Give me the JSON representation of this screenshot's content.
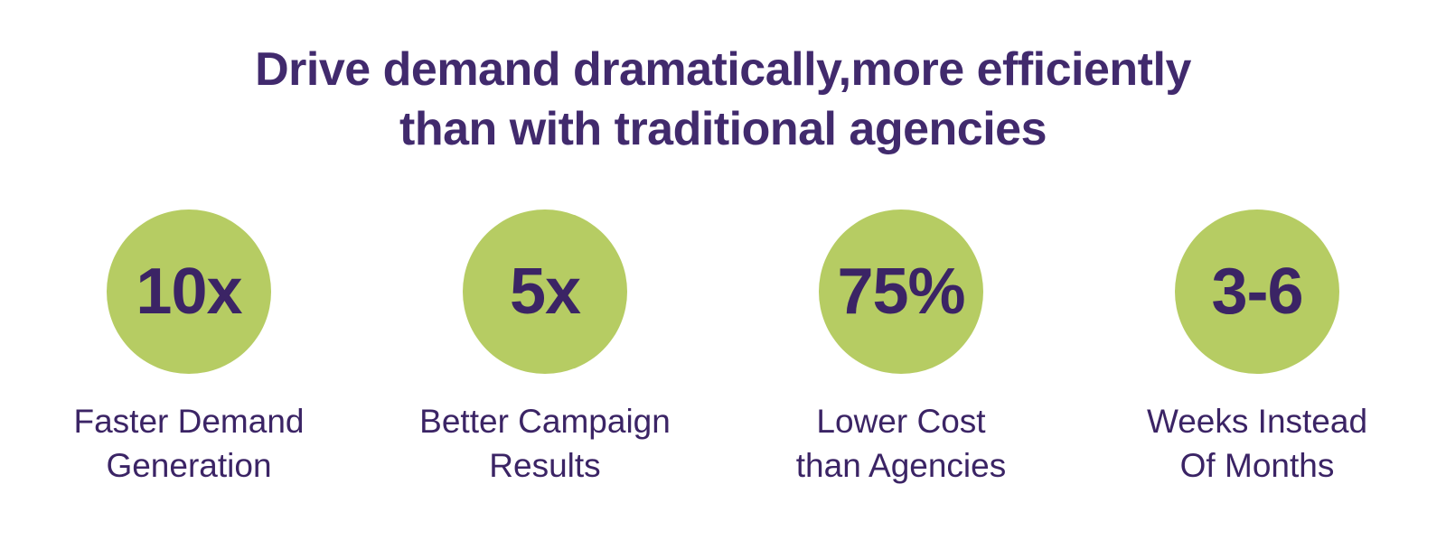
{
  "page": {
    "background_color": "#ffffff"
  },
  "title": {
    "line1": "Drive demand dramatically,more efficiently",
    "line2": "than with traditional agencies",
    "color": "#412a6d"
  },
  "stats": {
    "circle_color": "#b6cc63",
    "text_color": "#3b2465",
    "items": [
      {
        "value": "10x",
        "label": "Faster Demand\nGeneration"
      },
      {
        "value": "5x",
        "label": "Better Campaign\nResults"
      },
      {
        "value": "75%",
        "label": "Lower Cost\nthan Agencies"
      },
      {
        "value": "3-6",
        "label": "Weeks Instead\nOf Months"
      }
    ]
  }
}
